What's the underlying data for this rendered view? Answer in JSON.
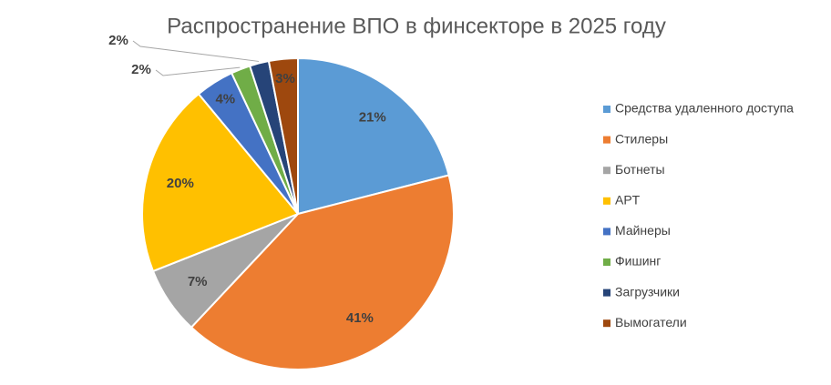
{
  "chart_data": {
    "type": "pie",
    "title": "Распространение ВПО в финсекторе в 2025 году",
    "categories": [
      "Средства удаленного доступа",
      "Стилеры",
      "Ботнеты",
      "APT",
      "Майнеры",
      "Фишинг",
      "Загрузчики",
      "Вымогатели"
    ],
    "values": [
      21,
      41,
      7,
      20,
      4,
      2,
      2,
      3
    ],
    "value_labels": [
      "21%",
      "41%",
      "7%",
      "20%",
      "4%",
      "2%",
      "2%",
      "3%"
    ],
    "colors": [
      "#5b9bd5",
      "#ed7d31",
      "#a5a5a5",
      "#ffc000",
      "#4472c4",
      "#70ad47",
      "#264478",
      "#9e480e"
    ],
    "legend": "right"
  }
}
